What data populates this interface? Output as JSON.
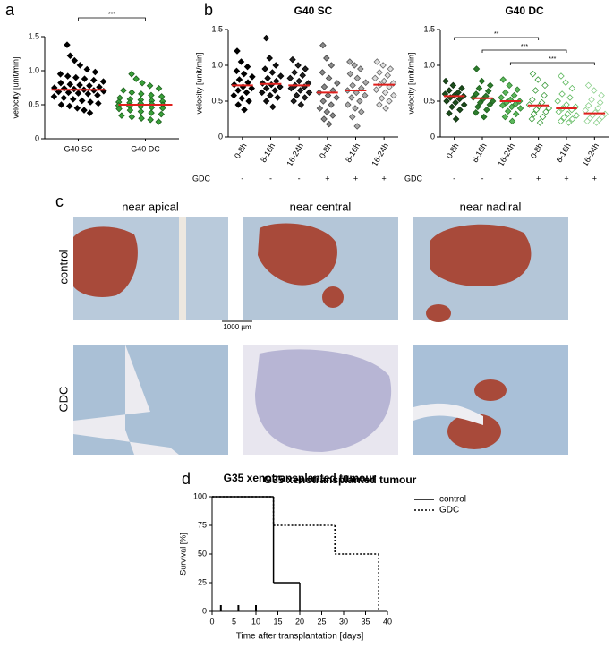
{
  "panel_labels": [
    "a",
    "b",
    "c",
    "d"
  ],
  "chart_data": [
    {
      "type": "dot",
      "ylabel": "velocity [unit/min]",
      "categories": [
        "G40 SC",
        "G40 DC"
      ],
      "values": [
        [
          1.38,
          1.22,
          1.15,
          1.08,
          1.02,
          0.98,
          0.95,
          0.92,
          0.9,
          0.88,
          0.86,
          0.84,
          0.82,
          0.8,
          0.79,
          0.78,
          0.76,
          0.75,
          0.74,
          0.73,
          0.72,
          0.71,
          0.7,
          0.69,
          0.68,
          0.67,
          0.66,
          0.64,
          0.62,
          0.6,
          0.58,
          0.56,
          0.54,
          0.52,
          0.5,
          0.48,
          0.45,
          0.42,
          0.38
        ],
        [
          0.95,
          0.88,
          0.82,
          0.78,
          0.74,
          0.71,
          0.68,
          0.66,
          0.64,
          0.62,
          0.6,
          0.58,
          0.57,
          0.56,
          0.55,
          0.54,
          0.53,
          0.52,
          0.51,
          0.5,
          0.49,
          0.48,
          0.47,
          0.46,
          0.45,
          0.44,
          0.42,
          0.4,
          0.38,
          0.36,
          0.34,
          0.32,
          0.3,
          0.28,
          0.25
        ]
      ],
      "medians": [
        0.72,
        0.5
      ],
      "median_color": "#e0201e",
      "fills": [
        "#000000",
        "#3aa03a"
      ],
      "strokes": [
        "#000000",
        "#1b5e1b"
      ],
      "ylim": [
        0,
        1.5
      ],
      "yticks": [
        0,
        0.5,
        {
          "value": 1,
          "label": "1.0"
        },
        1.5
      ],
      "comparisons": [
        {
          "pair": [
            0,
            1
          ],
          "label": "***"
        }
      ]
    },
    {
      "type": "dot",
      "title": "G40 SC",
      "ylabel": "velocity [unit/min]",
      "categories": [
        "0-8h",
        "8-16h",
        "16-24h",
        "0-8h",
        "8-16h",
        "16-24h"
      ],
      "gdc_label": "GDC",
      "gdc": [
        "-",
        "-",
        "-",
        "+",
        "+",
        "+"
      ],
      "values": [
        [
          1.2,
          1.05,
          0.98,
          0.92,
          0.88,
          0.84,
          0.8,
          0.76,
          0.73,
          0.7,
          0.68,
          0.65,
          0.62,
          0.58,
          0.54,
          0.5,
          0.45,
          0.38
        ],
        [
          1.38,
          1.1,
          1.0,
          0.95,
          0.9,
          0.85,
          0.82,
          0.78,
          0.75,
          0.73,
          0.7,
          0.68,
          0.65,
          0.62,
          0.58,
          0.55,
          0.5,
          0.42
        ],
        [
          1.08,
          1.0,
          0.95,
          0.9,
          0.86,
          0.82,
          0.78,
          0.75,
          0.72,
          0.7,
          0.68,
          0.65,
          0.62,
          0.58,
          0.55,
          0.5,
          0.45
        ],
        [
          1.28,
          1.1,
          1.0,
          0.9,
          0.82,
          0.75,
          0.7,
          0.65,
          0.62,
          0.58,
          0.55,
          0.5,
          0.45,
          0.4,
          0.35,
          0.3,
          0.25,
          0.18
        ],
        [
          1.05,
          1.0,
          0.95,
          0.88,
          0.82,
          0.76,
          0.72,
          0.68,
          0.65,
          0.62,
          0.58,
          0.55,
          0.5,
          0.45,
          0.4,
          0.35,
          0.28,
          0.15
        ],
        [
          1.05,
          1.0,
          0.95,
          0.9,
          0.86,
          0.82,
          0.78,
          0.75,
          0.73,
          0.7,
          0.66,
          0.62,
          0.58,
          0.54,
          0.5,
          0.45,
          0.4
        ]
      ],
      "medians": [
        0.72,
        0.74,
        0.72,
        0.62,
        0.65,
        0.73
      ],
      "median_color": "#e0201e",
      "fills": [
        "#000000",
        "#111111",
        "#222222",
        "#888888",
        "#aaaaaa",
        "#dddddd"
      ],
      "strokes": [
        "#000000",
        "#000000",
        "#000000",
        "#444444",
        "#555555",
        "#666666"
      ],
      "ylim": [
        0,
        1.5
      ],
      "yticks": [
        0,
        0.5,
        {
          "value": 1,
          "label": "1.0"
        },
        1.5
      ]
    },
    {
      "type": "dot",
      "title": "G40 DC",
      "ylabel": "velocity [unit/min]",
      "categories": [
        "0-8h",
        "8-16h",
        "16-24h",
        "0-8h",
        "8-16h",
        "16-24h"
      ],
      "gdc_label": "GDC",
      "gdc": [
        "-",
        "-",
        "-",
        "+",
        "+",
        "+"
      ],
      "values": [
        [
          0.78,
          0.72,
          0.68,
          0.65,
          0.62,
          0.6,
          0.58,
          0.57,
          0.55,
          0.53,
          0.5,
          0.48,
          0.45,
          0.42,
          0.38,
          0.33,
          0.25
        ],
        [
          0.95,
          0.78,
          0.72,
          0.68,
          0.64,
          0.6,
          0.57,
          0.55,
          0.53,
          0.5,
          0.48,
          0.45,
          0.42,
          0.38,
          0.34,
          0.28
        ],
        [
          0.8,
          0.72,
          0.66,
          0.62,
          0.58,
          0.55,
          0.52,
          0.5,
          0.48,
          0.46,
          0.44,
          0.42,
          0.4,
          0.36,
          0.32,
          0.28,
          0.22
        ],
        [
          0.88,
          0.8,
          0.72,
          0.65,
          0.58,
          0.52,
          0.48,
          0.45,
          0.43,
          0.4,
          0.38,
          0.35,
          0.32,
          0.28,
          0.25,
          0.2
        ],
        [
          0.85,
          0.76,
          0.68,
          0.6,
          0.55,
          0.5,
          0.45,
          0.42,
          0.4,
          0.38,
          0.35,
          0.32,
          0.3,
          0.27,
          0.25,
          0.22,
          0.2
        ],
        [
          0.72,
          0.65,
          0.58,
          0.52,
          0.48,
          0.44,
          0.4,
          0.37,
          0.34,
          0.32,
          0.3,
          0.28,
          0.26,
          0.24,
          0.22,
          0.2
        ]
      ],
      "medians": [
        0.57,
        0.54,
        0.5,
        0.44,
        0.4,
        0.33
      ],
      "median_color": "#e0201e",
      "fills": [
        "#1b4d1b",
        "#2e7d2e",
        "#5cb85c",
        "#ffffff",
        "#ffffff",
        "#ffffff"
      ],
      "strokes": [
        "#0d2d0d",
        "#1b5e1b",
        "#2e7d2e",
        "#3a9a3a",
        "#5cb85c",
        "#8bcf8b"
      ],
      "ylim": [
        0,
        1.5
      ],
      "yticks": [
        0,
        0.5,
        {
          "value": 1,
          "label": "1.0"
        },
        1.5
      ],
      "comparisons": [
        {
          "pair": [
            0,
            3
          ],
          "label": "**"
        },
        {
          "pair": [
            1,
            4
          ],
          "label": "***"
        },
        {
          "pair": [
            2,
            5
          ],
          "label": "***"
        }
      ]
    },
    {
      "type": "step",
      "title": "G35 xenotransplanted tumour",
      "xlabel": "Time after transplantation [days]",
      "ylabel": "Survival [%]",
      "series": [
        {
          "name": "control",
          "style": "solid",
          "color": "#000000",
          "x": [
            0,
            14,
            20
          ],
          "values": [
            100,
            25,
            0
          ]
        },
        {
          "name": "GDC",
          "style": "dotted",
          "color": "#000000",
          "x": [
            0,
            14,
            28,
            38
          ],
          "values": [
            100,
            75,
            50,
            0
          ]
        }
      ],
      "markers": [
        2,
        6,
        10
      ],
      "legend": "top-right",
      "xlim": [
        0,
        40
      ],
      "xticks": [
        0,
        5,
        10,
        15,
        20,
        25,
        30,
        35,
        40
      ],
      "ylim": [
        0,
        100
      ],
      "yticks": [
        0,
        25,
        50,
        75,
        100
      ]
    }
  ],
  "panel_c": {
    "columns": [
      "near apical",
      "near central",
      "near nadiral"
    ],
    "rows": [
      "control",
      "GDC"
    ],
    "scale_bar": "1000 µm"
  }
}
